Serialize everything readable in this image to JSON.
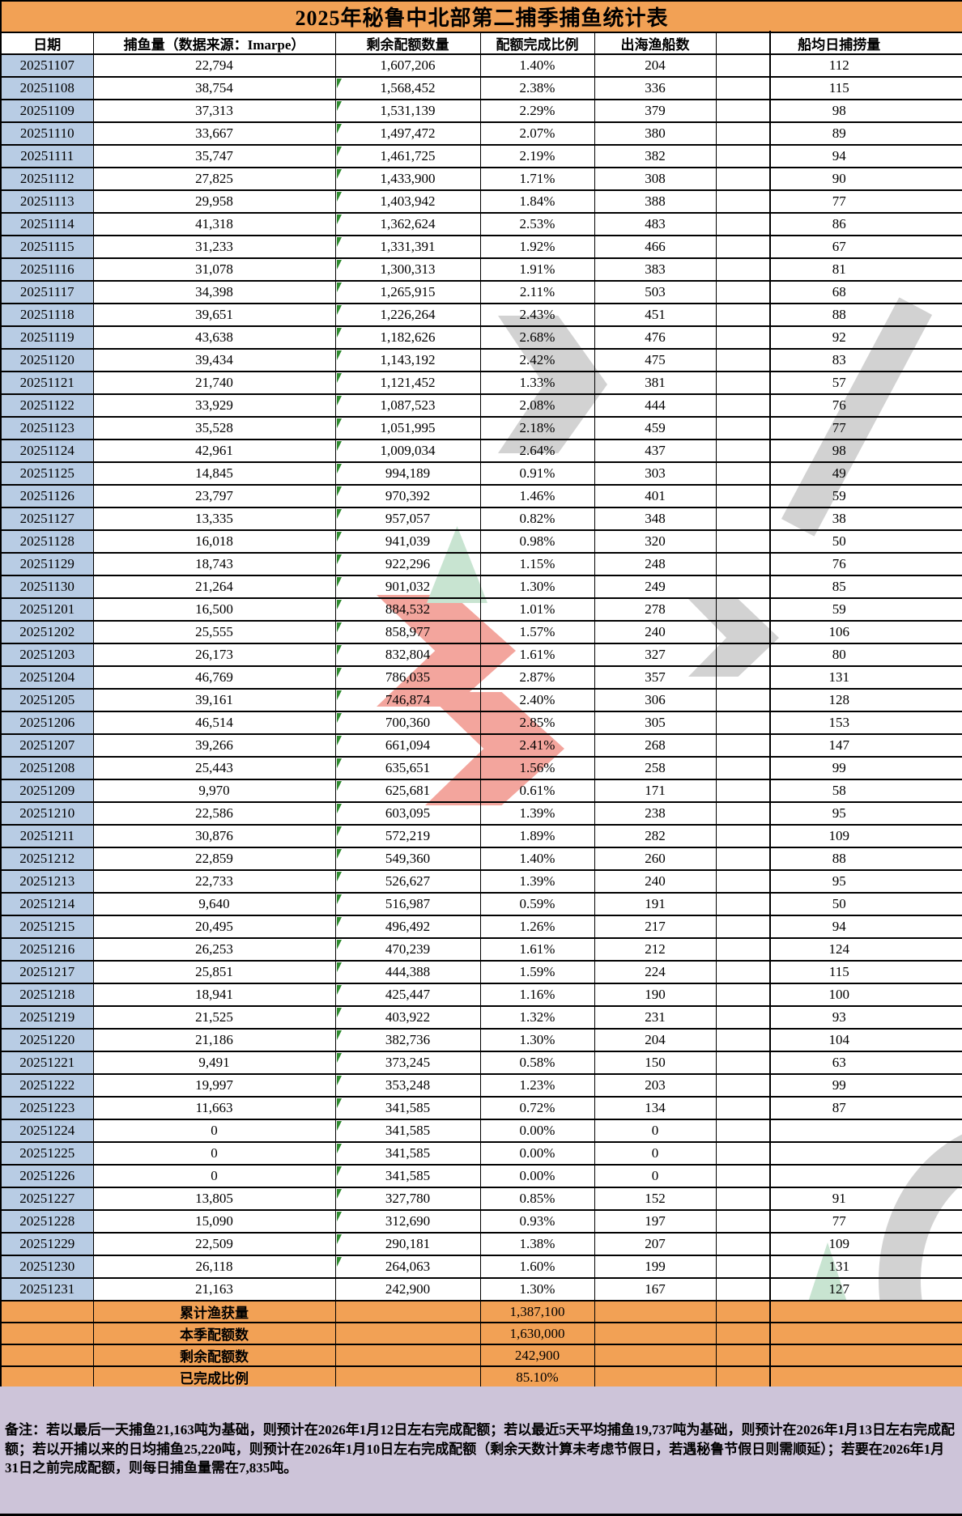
{
  "title": "2025年秘鲁中北部第二捕季捕鱼统计表",
  "table": {
    "headers": [
      "日期",
      "捕鱼量（数据来源：Imarpe）",
      "剩余配额数量",
      "配额完成比例",
      "出海渔船数",
      "船均日捕捞量"
    ],
    "rows": [
      [
        "20251107",
        "22,794",
        "1,607,206",
        "1.40%",
        "204",
        "112"
      ],
      [
        "20251108",
        "38,754",
        "1,568,452",
        "2.38%",
        "336",
        "115"
      ],
      [
        "20251109",
        "37,313",
        "1,531,139",
        "2.29%",
        "379",
        "98"
      ],
      [
        "20251110",
        "33,667",
        "1,497,472",
        "2.07%",
        "380",
        "89"
      ],
      [
        "20251111",
        "35,747",
        "1,461,725",
        "2.19%",
        "382",
        "94"
      ],
      [
        "20251112",
        "27,825",
        "1,433,900",
        "1.71%",
        "308",
        "90"
      ],
      [
        "20251113",
        "29,958",
        "1,403,942",
        "1.84%",
        "388",
        "77"
      ],
      [
        "20251114",
        "41,318",
        "1,362,624",
        "2.53%",
        "483",
        "86"
      ],
      [
        "20251115",
        "31,233",
        "1,331,391",
        "1.92%",
        "466",
        "67"
      ],
      [
        "20251116",
        "31,078",
        "1,300,313",
        "1.91%",
        "383",
        "81"
      ],
      [
        "20251117",
        "34,398",
        "1,265,915",
        "2.11%",
        "503",
        "68"
      ],
      [
        "20251118",
        "39,651",
        "1,226,264",
        "2.43%",
        "451",
        "88"
      ],
      [
        "20251119",
        "43,638",
        "1,182,626",
        "2.68%",
        "476",
        "92"
      ],
      [
        "20251120",
        "39,434",
        "1,143,192",
        "2.42%",
        "475",
        "83"
      ],
      [
        "20251121",
        "21,740",
        "1,121,452",
        "1.33%",
        "381",
        "57"
      ],
      [
        "20251122",
        "33,929",
        "1,087,523",
        "2.08%",
        "444",
        "76"
      ],
      [
        "20251123",
        "35,528",
        "1,051,995",
        "2.18%",
        "459",
        "77"
      ],
      [
        "20251124",
        "42,961",
        "1,009,034",
        "2.64%",
        "437",
        "98"
      ],
      [
        "20251125",
        "14,845",
        "994,189",
        "0.91%",
        "303",
        "49"
      ],
      [
        "20251126",
        "23,797",
        "970,392",
        "1.46%",
        "401",
        "59"
      ],
      [
        "20251127",
        "13,335",
        "957,057",
        "0.82%",
        "348",
        "38"
      ],
      [
        "20251128",
        "16,018",
        "941,039",
        "0.98%",
        "320",
        "50"
      ],
      [
        "20251129",
        "18,743",
        "922,296",
        "1.15%",
        "248",
        "76"
      ],
      [
        "20251130",
        "21,264",
        "901,032",
        "1.30%",
        "249",
        "85"
      ],
      [
        "20251201",
        "16,500",
        "884,532",
        "1.01%",
        "278",
        "59"
      ],
      [
        "20251202",
        "25,555",
        "858,977",
        "1.57%",
        "240",
        "106"
      ],
      [
        "20251203",
        "26,173",
        "832,804",
        "1.61%",
        "327",
        "80"
      ],
      [
        "20251204",
        "46,769",
        "786,035",
        "2.87%",
        "357",
        "131"
      ],
      [
        "20251205",
        "39,161",
        "746,874",
        "2.40%",
        "306",
        "128"
      ],
      [
        "20251206",
        "46,514",
        "700,360",
        "2.85%",
        "305",
        "153"
      ],
      [
        "20251207",
        "39,266",
        "661,094",
        "2.41%",
        "268",
        "147"
      ],
      [
        "20251208",
        "25,443",
        "635,651",
        "1.56%",
        "258",
        "99"
      ],
      [
        "20251209",
        "9,970",
        "625,681",
        "0.61%",
        "171",
        "58"
      ],
      [
        "20251210",
        "22,586",
        "603,095",
        "1.39%",
        "238",
        "95"
      ],
      [
        "20251211",
        "30,876",
        "572,219",
        "1.89%",
        "282",
        "109"
      ],
      [
        "20251212",
        "22,859",
        "549,360",
        "1.40%",
        "260",
        "88"
      ],
      [
        "20251213",
        "22,733",
        "526,627",
        "1.39%",
        "240",
        "95"
      ],
      [
        "20251214",
        "9,640",
        "516,987",
        "0.59%",
        "191",
        "50"
      ],
      [
        "20251215",
        "20,495",
        "496,492",
        "1.26%",
        "217",
        "94"
      ],
      [
        "20251216",
        "26,253",
        "470,239",
        "1.61%",
        "212",
        "124"
      ],
      [
        "20251217",
        "25,851",
        "444,388",
        "1.59%",
        "224",
        "115"
      ],
      [
        "20251218",
        "18,941",
        "425,447",
        "1.16%",
        "190",
        "100"
      ],
      [
        "20251219",
        "21,525",
        "403,922",
        "1.32%",
        "231",
        "93"
      ],
      [
        "20251220",
        "21,186",
        "382,736",
        "1.30%",
        "204",
        "104"
      ],
      [
        "20251221",
        "9,491",
        "373,245",
        "0.58%",
        "150",
        "63"
      ],
      [
        "20251222",
        "19,997",
        "353,248",
        "1.23%",
        "203",
        "99"
      ],
      [
        "20251223",
        "11,663",
        "341,585",
        "0.72%",
        "134",
        "87"
      ],
      [
        "20251224",
        "0",
        "341,585",
        "0.00%",
        "0",
        ""
      ],
      [
        "20251225",
        "0",
        "341,585",
        "0.00%",
        "0",
        ""
      ],
      [
        "20251226",
        "0",
        "341,585",
        "0.00%",
        "0",
        ""
      ],
      [
        "20251227",
        "13,805",
        "327,780",
        "0.85%",
        "152",
        "91"
      ],
      [
        "20251228",
        "15,090",
        "312,690",
        "0.93%",
        "197",
        "77"
      ],
      [
        "20251229",
        "22,509",
        "290,181",
        "1.38%",
        "207",
        "109"
      ],
      [
        "20251230",
        "26,118",
        "264,063",
        "1.60%",
        "199",
        "131"
      ],
      [
        "20251231",
        "21,163",
        "242,900",
        "1.30%",
        "167",
        "127"
      ]
    ],
    "summary": [
      {
        "label": "累计渔获量",
        "value": "1,387,100"
      },
      {
        "label": "本季配额数",
        "value": "1,630,000"
      },
      {
        "label": "剩余配额数",
        "value": "242,900"
      },
      {
        "label": "已完成比例",
        "value": "85.10%"
      }
    ]
  },
  "note": "备注：若以最后一天捕鱼21,163吨为基础，则预计在2026年1月12日左右完成配额；若以最近5天平均捕鱼19,737吨为基础，则预计在2026年1月13日左右完成配额；若以开捕以来的日均捕鱼25,220吨，则预计在2026年1月10日左右完成配额（剩余天数计算未考虑节假日，若遇秘鲁节假日则需顺延）；若要在2026年1月31日之前完成配额，则每日捕鱼量需在7,835吨。",
  "watermark": {
    "logo_text": "JCI"
  },
  "colors": {
    "title_bg": "#F2A155",
    "date_col_bg": "#B8CCE4",
    "summary_bg": "#F2A155",
    "note_bg": "#CDC4D9",
    "error_marker_green": "#2E8B2E",
    "watermark_red": "#F2968C",
    "watermark_gray": "#CBCBCB",
    "watermark_green": "#BFE0C9",
    "border": "#000000"
  }
}
